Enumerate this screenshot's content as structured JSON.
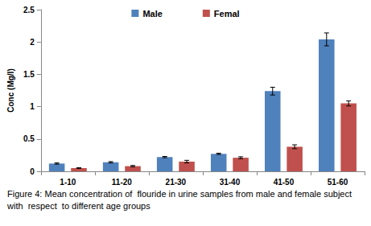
{
  "chart_data": {
    "type": "bar",
    "title": "Figure 4: Mean concentration of  flouride in urine samples from male and female subject with  respect  to different age groups",
    "y_label": "Conc (Mg/l)",
    "categories": [
      "1-10",
      "11-20",
      "21-30",
      "31-40",
      "41-50",
      "51-60"
    ],
    "series": [
      {
        "name": "Male",
        "color": "#4f81bd",
        "values": [
          0.12,
          0.14,
          0.22,
          0.27,
          1.24,
          2.04
        ],
        "errors": [
          0.01,
          0.01,
          0.01,
          0.01,
          0.06,
          0.1
        ]
      },
      {
        "name": "Femal",
        "color": "#c0504d",
        "values": [
          0.05,
          0.08,
          0.15,
          0.21,
          0.38,
          1.05
        ],
        "errors": [
          0.005,
          0.01,
          0.02,
          0.015,
          0.03,
          0.04
        ]
      }
    ],
    "ylim": [
      0,
      2.5
    ],
    "yticks": [
      0,
      0.5,
      1,
      1.5,
      2,
      2.5
    ],
    "grid": false,
    "legend": "top"
  }
}
